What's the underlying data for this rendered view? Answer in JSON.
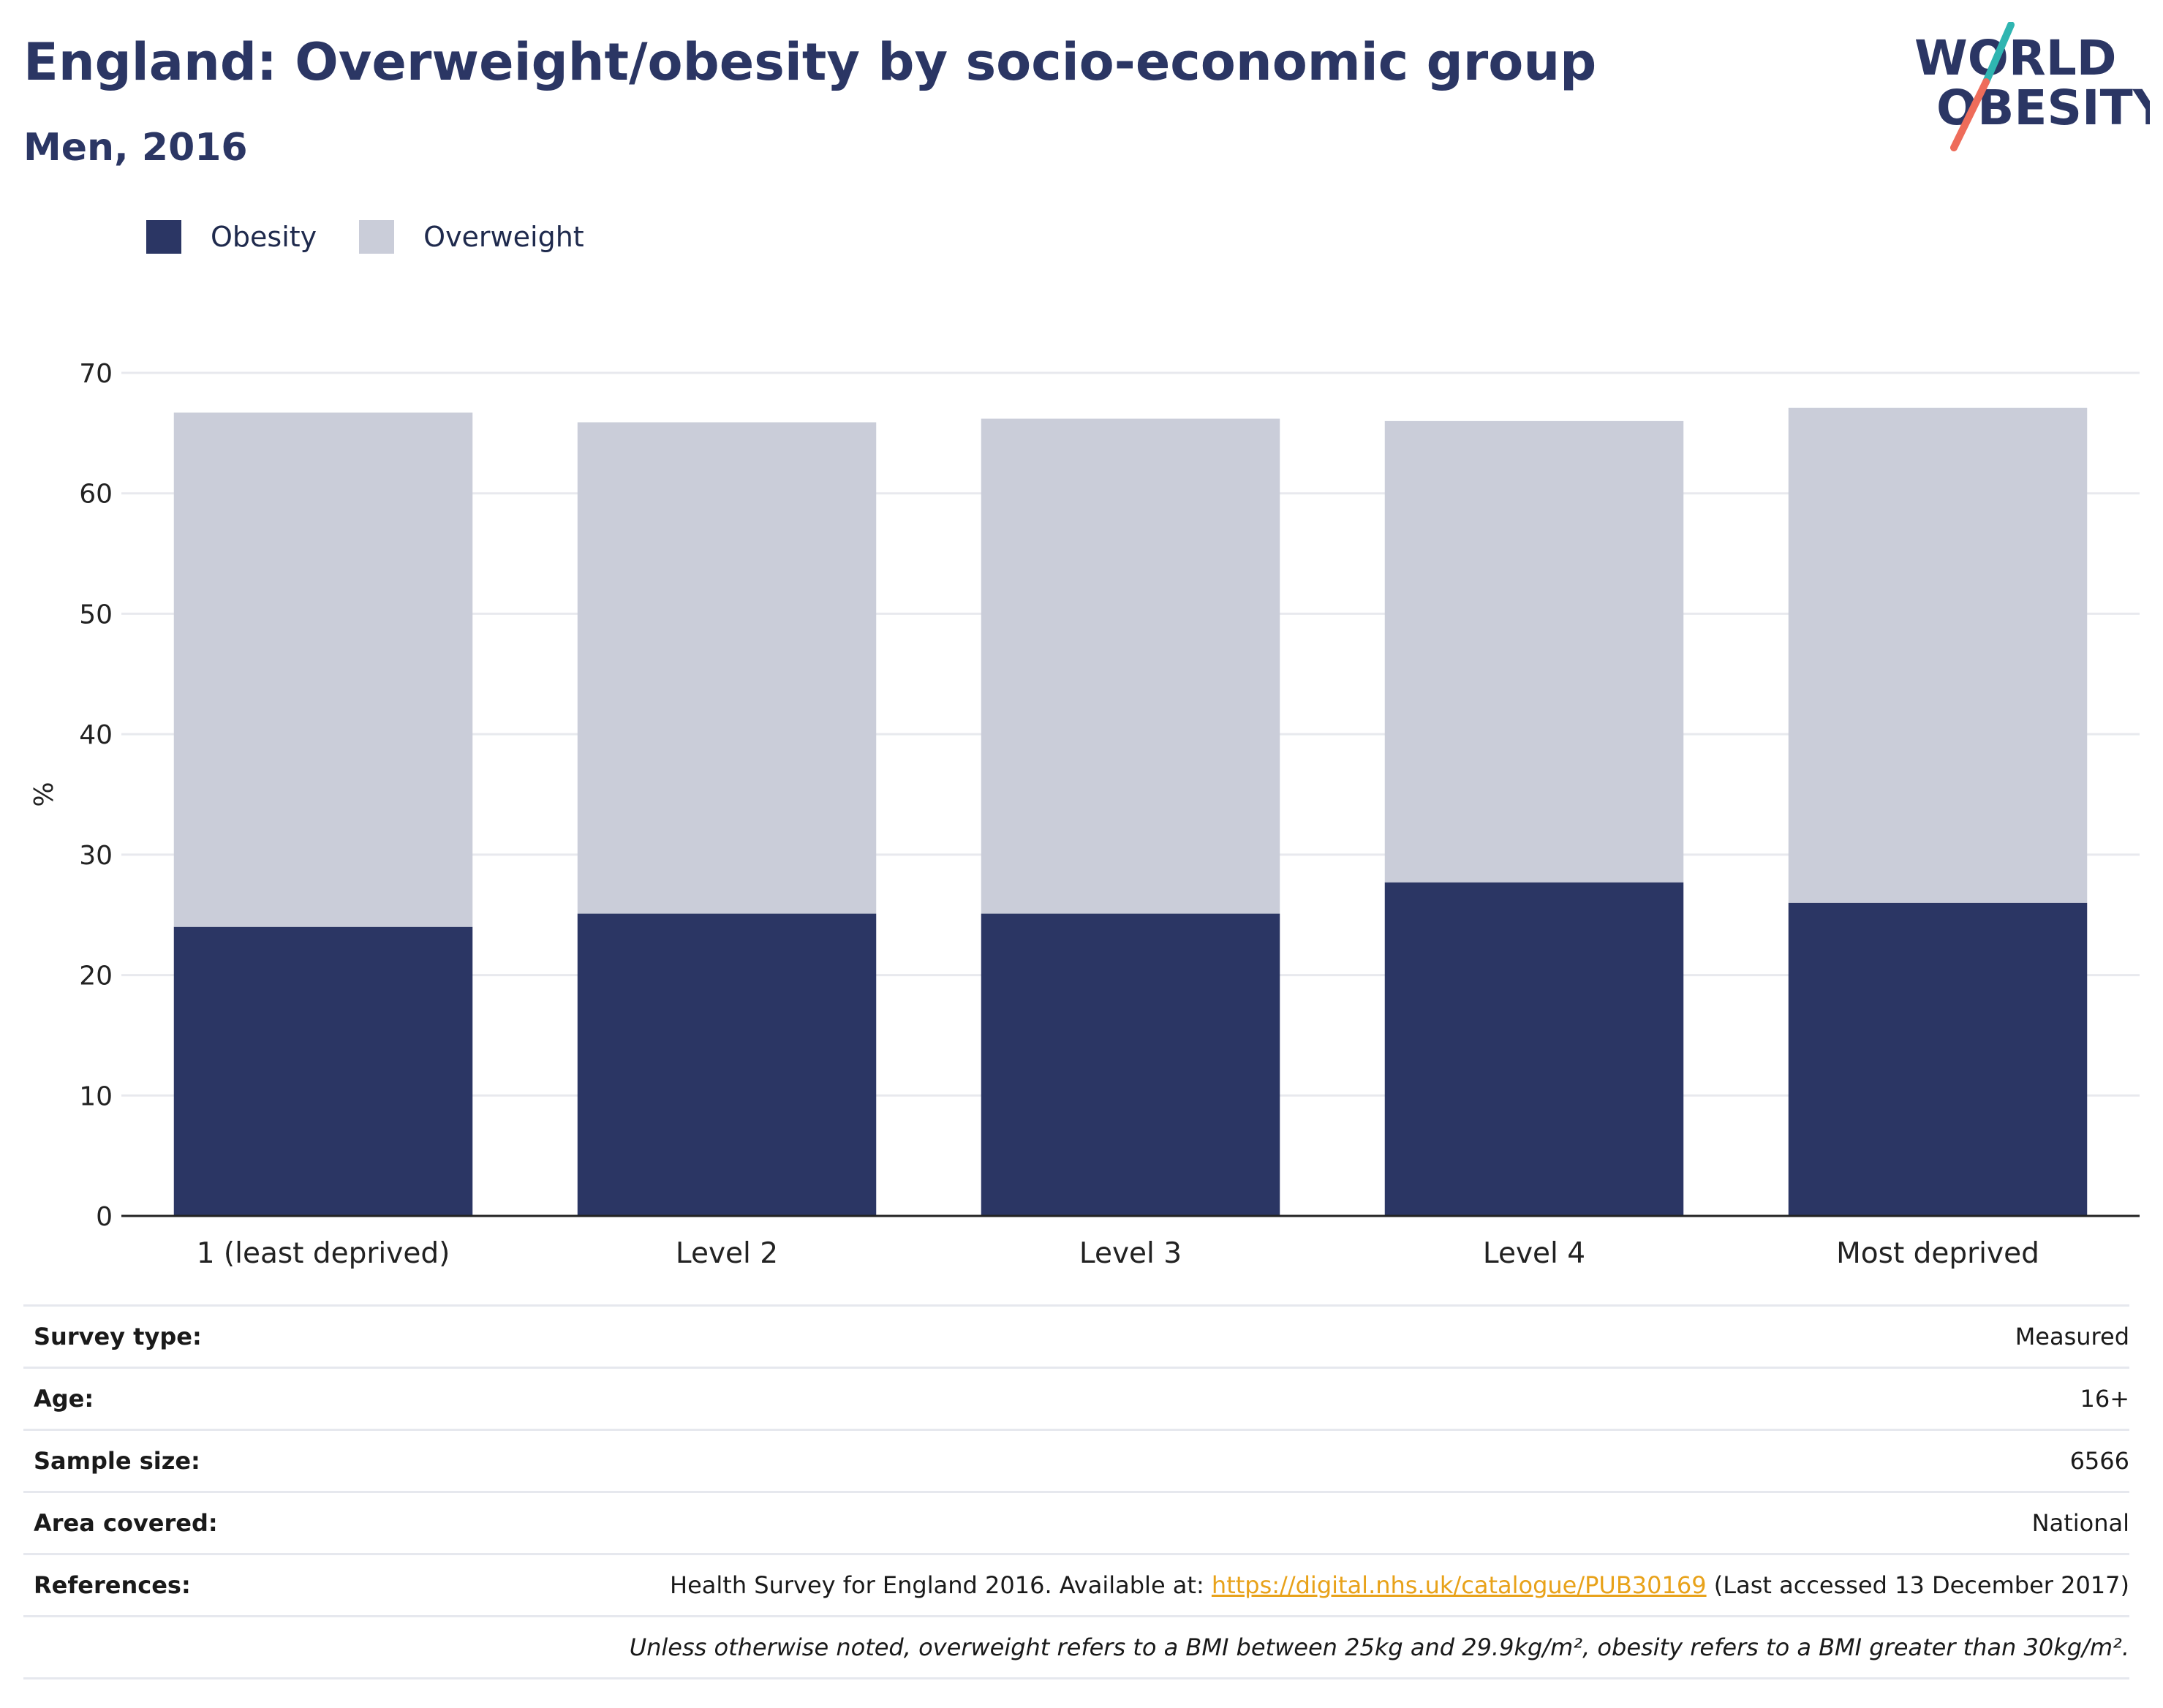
{
  "header": {
    "title": "England: Overweight/obesity by socio-economic group",
    "subtitle": "Men, 2016"
  },
  "logo": {
    "line1": "WORLD",
    "line2": "OBESITY",
    "accent_teal": "#2fb5b1",
    "accent_coral": "#ee6c5a",
    "text_color": "#2b3664"
  },
  "colors": {
    "obesity": "#2b3664",
    "overweight": "#cacdd9",
    "gridline": "#e8e9ee",
    "axis": "#222222",
    "link": "#e8a21a"
  },
  "legend": [
    {
      "label": "Obesity",
      "color": "#2b3664"
    },
    {
      "label": "Overweight",
      "color": "#cacdd9"
    }
  ],
  "chart_data": {
    "type": "bar",
    "stacked": true,
    "title": "England: Overweight/obesity by socio-economic group",
    "subtitle": "Men, 2016",
    "xlabel": "",
    "ylabel": "%",
    "ylim": [
      0,
      70
    ],
    "yticks": [
      0,
      10,
      20,
      30,
      40,
      50,
      60,
      70
    ],
    "grid": true,
    "legend_position": "top-left",
    "categories": [
      "1 (least deprived)",
      "Level 2",
      "Level 3",
      "Level 4",
      "Most deprived"
    ],
    "series": [
      {
        "name": "Obesity",
        "color": "#2b3664",
        "values": [
          24.0,
          25.1,
          25.1,
          27.7,
          26.0
        ]
      },
      {
        "name": "Overweight",
        "color": "#cacdd9",
        "values": [
          42.7,
          40.8,
          41.1,
          38.3,
          41.1
        ]
      }
    ]
  },
  "info": {
    "rows": [
      {
        "key": "Survey type:",
        "value": "Measured"
      },
      {
        "key": "Age:",
        "value": "16+"
      },
      {
        "key": "Sample size:",
        "value": "6566"
      },
      {
        "key": "Area covered:",
        "value": "National"
      }
    ],
    "references": {
      "key": "References:",
      "prefix": "Health Survey for England 2016. Available at: ",
      "link": "https://digital.nhs.uk/catalogue/PUB30169",
      "suffix": " (Last accessed 13 December 2017)"
    },
    "note": "Unless otherwise noted, overweight refers to a BMI between 25kg and 29.9kg/m², obesity refers to a BMI greater than 30kg/m²."
  }
}
